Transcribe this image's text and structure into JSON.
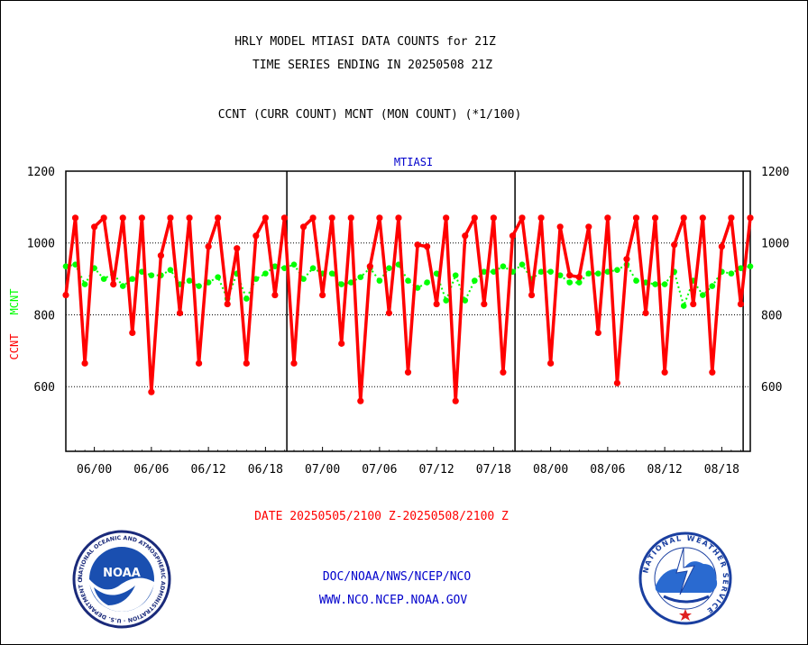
{
  "header": {
    "title_line1": "HRLY MODEL MTIASI DATA COUNTS for 21Z",
    "title_line2": "TIME SERIES ENDING IN 20250508 21Z",
    "subtitle": "CCNT (CURR COUNT) MCNT (MON COUNT) (*1/100)"
  },
  "chart_data": {
    "type": "line",
    "title": "MTIASI",
    "ylabel_ccnt": "CCNT",
    "ylabel_mcnt": "MCNT",
    "xlabel": "DATE 20250505/2100 Z-20250508/2100 Z",
    "ylim": [
      420,
      1200
    ],
    "y_ticks": [
      600,
      800,
      1000,
      1200
    ],
    "x_ticks": [
      "06/00",
      "06/06",
      "06/12",
      "06/18",
      "07/00",
      "07/06",
      "07/12",
      "07/18",
      "08/00",
      "08/06",
      "08/12",
      "08/18"
    ],
    "day_boundaries": [
      "05/21",
      "06/21",
      "07/21"
    ],
    "grid": "dotted horizontal at 600, 800, 1000",
    "series": [
      {
        "name": "CCNT",
        "color": "#ff0000",
        "values": [
          855,
          1070,
          665,
          1045,
          1070,
          885,
          1070,
          750,
          1070,
          585,
          965,
          1070,
          805,
          1070,
          665,
          990,
          1070,
          830,
          985,
          665,
          1020,
          1070,
          855,
          1070,
          665,
          1045,
          1070,
          855,
          1070,
          720,
          1070,
          560,
          935,
          1070,
          805,
          1070,
          640,
          995,
          990,
          830,
          1070,
          560,
          1020,
          1070,
          830,
          1070,
          640,
          1020,
          1070,
          855,
          1070,
          665,
          1045,
          910,
          905,
          1045,
          750,
          1070,
          610,
          955,
          1070,
          805,
          1070,
          640,
          995,
          1070,
          830,
          1070,
          640,
          990,
          1070,
          830,
          1070
        ]
      },
      {
        "name": "MCNT",
        "color": "#00ff00",
        "values": [
          935,
          940,
          885,
          930,
          900,
          915,
          880,
          900,
          920,
          910,
          910,
          925,
          885,
          895,
          880,
          890,
          905,
          845,
          915,
          845,
          900,
          915,
          935,
          930,
          940,
          900,
          930,
          915,
          915,
          885,
          890,
          905,
          930,
          895,
          930,
          940,
          895,
          875,
          890,
          915,
          840,
          910,
          840,
          895,
          920,
          920,
          935,
          920,
          940,
          900,
          920,
          920,
          910,
          890,
          890,
          915,
          915,
          920,
          925,
          940,
          895,
          890,
          885,
          885,
          920,
          825,
          895,
          855,
          880,
          920,
          915,
          930,
          935
        ]
      }
    ]
  },
  "footer": {
    "line1": "DOC/NOAA/NWS/NCEP/NCO",
    "line2": "WWW.NCO.NCEP.NOAA.GOV"
  },
  "logos": {
    "noaa_center": "NOAA",
    "noaa_ring": "NATIONAL OCEANIC AND ATMOSPHERIC ADMINISTRATION · U.S. DEPARTMENT OF COMMERCE",
    "nws_ring": "NATIONAL WEATHER SERVICE"
  },
  "colors": {
    "ccnt": "#ff0000",
    "mcnt": "#00ff00",
    "blue_text": "#0000cc",
    "axis": "#000000"
  }
}
